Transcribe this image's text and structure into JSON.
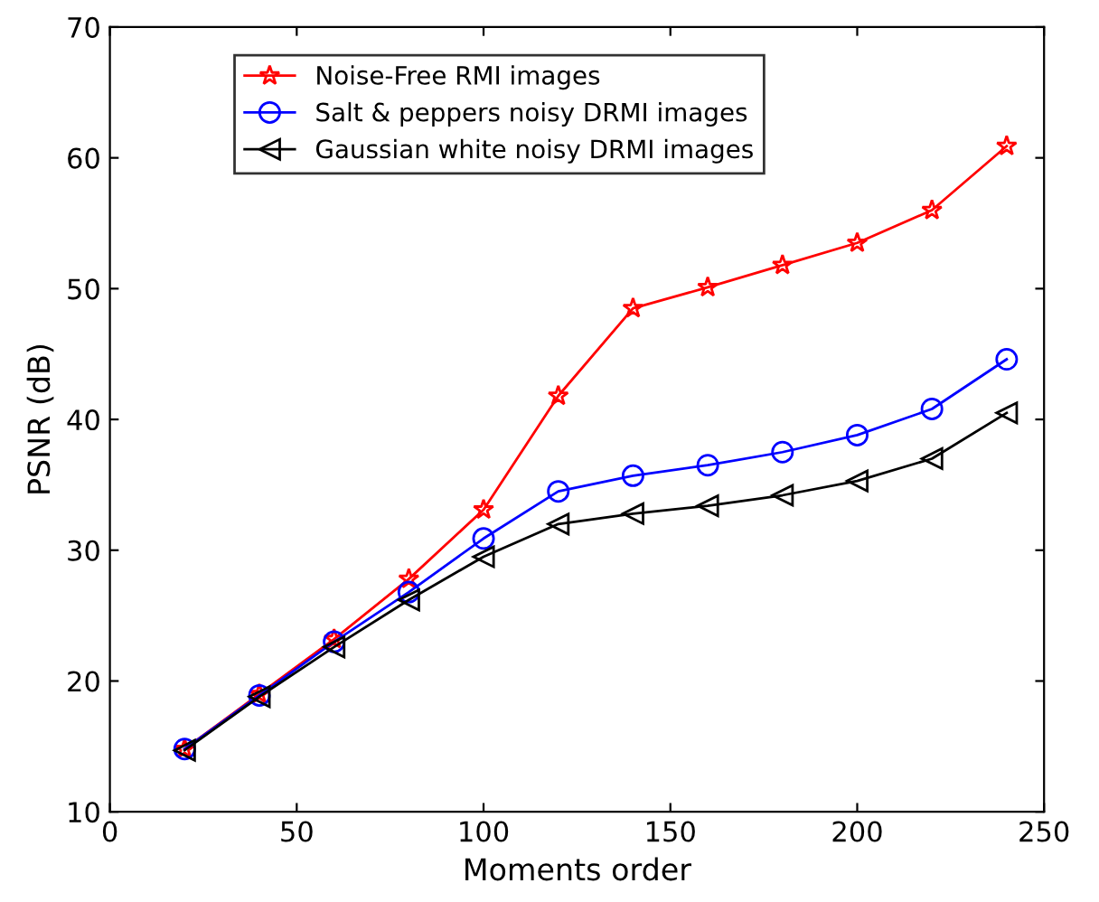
{
  "chart_data": {
    "type": "line",
    "xlabel": "Moments order",
    "ylabel": "PSNR (dB)",
    "x": [
      20,
      40,
      60,
      80,
      100,
      120,
      140,
      160,
      180,
      200,
      220,
      240
    ],
    "series": [
      {
        "name": "Noise-Free RMI images",
        "color": "#ff0000",
        "marker": "star",
        "values": [
          14.8,
          19.0,
          23.2,
          27.8,
          33.1,
          41.8,
          48.5,
          50.1,
          51.8,
          53.5,
          56.0,
          60.9
        ]
      },
      {
        "name": "Salt & peppers noisy DRMI images",
        "color": "#0000ff",
        "marker": "circle",
        "values": [
          14.8,
          18.9,
          23.0,
          26.8,
          30.9,
          34.5,
          35.7,
          36.5,
          37.5,
          38.8,
          40.8,
          44.6
        ]
      },
      {
        "name": "Gaussian white noisy DRMI images",
        "color": "#000000",
        "marker": "triangle",
        "values": [
          14.7,
          18.8,
          22.6,
          26.2,
          29.5,
          32.0,
          32.8,
          33.4,
          34.2,
          35.3,
          37.0,
          40.5
        ]
      }
    ],
    "xlim": [
      0,
      250
    ],
    "xticks": [
      0,
      50,
      100,
      150,
      200,
      250
    ],
    "ylim": [
      10,
      70
    ],
    "yticks": [
      10,
      20,
      30,
      40,
      50,
      60,
      70
    ],
    "grid": false,
    "legend": "top left",
    "line_style": "solid"
  }
}
